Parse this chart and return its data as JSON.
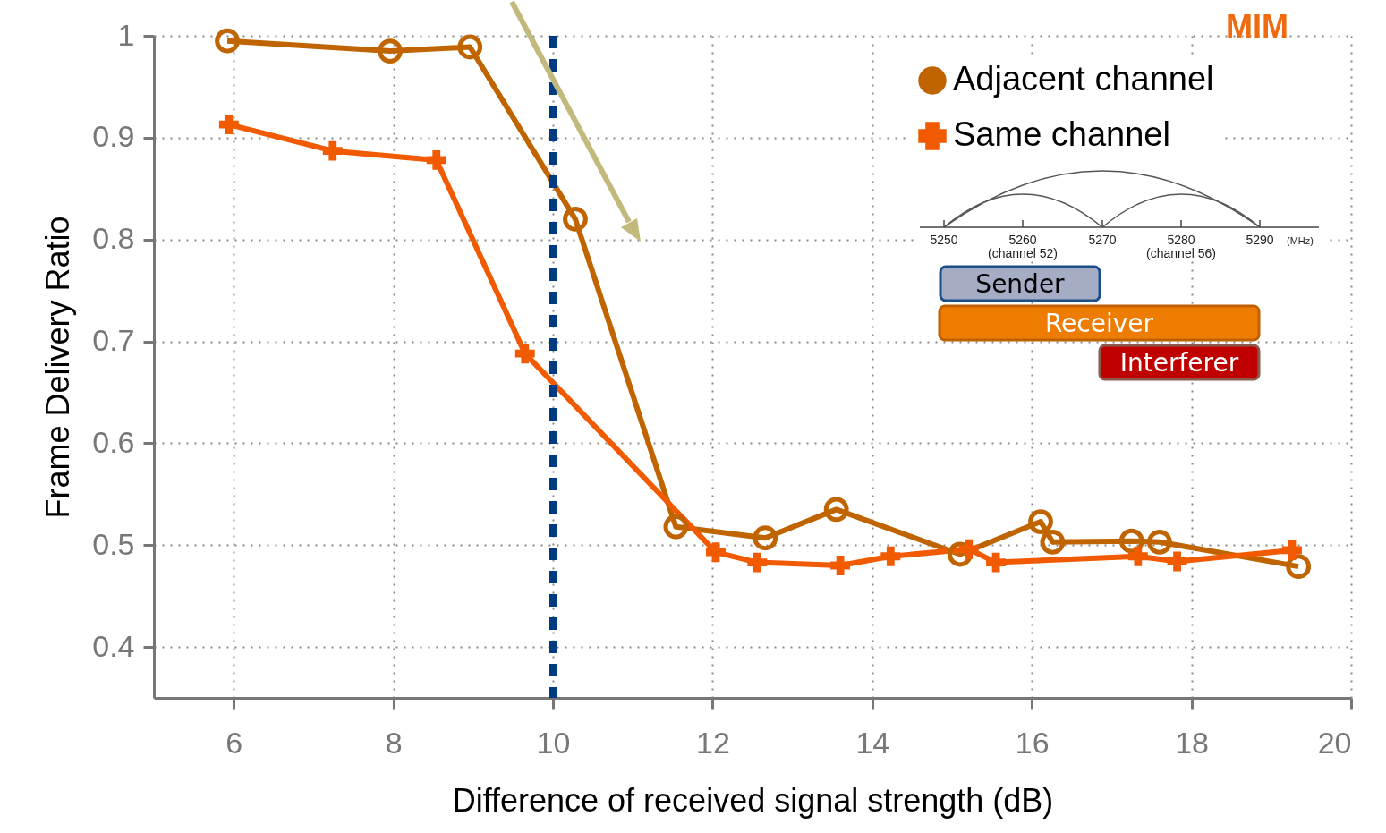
{
  "chart_data": {
    "type": "line",
    "xlabel": "Difference of received signal strength (dB)",
    "ylabel": "Frame Delivery Ratio",
    "xlim": [
      5,
      20
    ],
    "xticks": [
      6,
      8,
      10,
      12,
      14,
      16,
      18,
      20
    ],
    "ylim": [
      0.35,
      1
    ],
    "yticks": [
      0.4,
      0.5,
      0.6,
      0.7,
      0.8,
      0.9,
      1
    ],
    "grid": true,
    "legend": "top right",
    "line_style": "solid",
    "series": [
      {
        "name": "Adjacent channel",
        "color": "#c06400",
        "marker": "circle",
        "x": [
          5.92,
          7.96,
          8.96,
          10.28,
          11.54,
          12.66,
          13.55,
          15.1,
          16.11,
          16.26,
          17.25,
          17.6,
          19.34
        ],
        "values": [
          0.995,
          0.985,
          0.989,
          0.82,
          0.518,
          0.507,
          0.535,
          0.491,
          0.523,
          0.503,
          0.504,
          0.503,
          0.479
        ]
      },
      {
        "name": "Same channel",
        "color": "#f25a00",
        "marker": "cross",
        "x": [
          5.94,
          7.24,
          8.54,
          9.65,
          12.04,
          12.56,
          13.6,
          14.23,
          15.21,
          15.55,
          17.33,
          17.82,
          19.26
        ],
        "values": [
          0.913,
          0.887,
          0.878,
          0.688,
          0.493,
          0.483,
          0.48,
          0.489,
          0.496,
          0.483,
          0.489,
          0.484,
          0.495
        ]
      }
    ],
    "ref_lines": [
      {
        "axis": "x",
        "value": 10,
        "color": "#003a80",
        "line_style": "dashed"
      }
    ],
    "annotations": [
      "MIM",
      "5250",
      "5260",
      "(channel 52)",
      "5270",
      "5280",
      "(channel 56)",
      "5290",
      "(MHz)",
      "Sender",
      "Receiver",
      "Interferer"
    ]
  }
}
